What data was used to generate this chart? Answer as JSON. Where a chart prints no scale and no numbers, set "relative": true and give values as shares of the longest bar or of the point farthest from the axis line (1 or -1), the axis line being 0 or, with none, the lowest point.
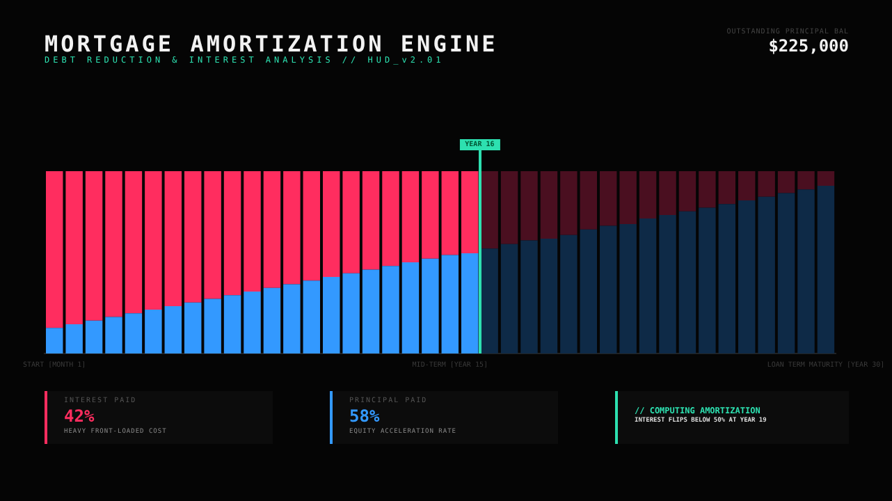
{
  "chart_data": {
    "type": "bar",
    "title": "MORTGAGE AMORTIZATION ENGINE",
    "subtitle": "DEBT REDUCTION & INTEREST ANALYSIS // HUD_v2.01",
    "categories": [
      "START [MONTH 1]",
      null,
      null,
      null,
      null,
      null,
      null,
      null,
      null,
      null,
      null,
      null,
      null,
      null,
      null,
      null,
      null,
      null,
      null,
      null,
      "MID-TERM [YEAR 15]",
      null,
      null,
      null,
      null,
      null,
      null,
      null,
      null,
      null,
      null,
      null,
      null,
      null,
      null,
      null,
      null,
      null,
      null,
      "LOAN TERM MATURITY [YEAR 30]"
    ],
    "stacked": true,
    "relative": true,
    "series": [
      {
        "values": [
          0.14,
          0.16,
          0.18,
          0.2,
          0.22,
          0.24,
          0.26,
          0.28,
          0.3,
          0.32,
          0.34,
          0.36,
          0.38,
          0.4,
          0.42,
          0.44,
          0.46,
          0.48,
          0.5,
          0.52,
          0.54,
          0.55,
          0.575,
          0.6,
          0.62,
          0.63,
          0.65,
          0.68,
          0.7,
          0.71,
          0.74,
          0.76,
          0.78,
          0.8,
          0.82,
          0.84,
          0.86,
          0.88,
          0.9,
          0.92
        ],
        "colors": [
          "#3399ff",
          "#3399ff",
          "#3399ff",
          "#3399ff",
          "#3399ff",
          "#3399ff",
          "#3399ff",
          "#3399ff",
          "#3399ff",
          "#3399ff",
          "#3399ff",
          "#3399ff",
          "#3399ff",
          "#3399ff",
          "#3399ff",
          "#3399ff",
          "#3399ff",
          "#3399ff",
          "#3399ff",
          "#3399ff",
          "#3399ff",
          "#3399ff",
          "#0e2a47",
          "#0e2a47",
          "#0e2a47",
          "#0e2a47",
          "#0e2a47",
          "#0e2a47",
          "#0e2a47",
          "#0e2a47",
          "#0e2a47",
          "#0e2a47",
          "#0e2a47",
          "#0e2a47",
          "#0e2a47",
          "#0e2a47",
          "#0e2a47",
          "#0e2a47",
          "#0e2a47",
          "#0e2a47"
        ]
      },
      {
        "values": [
          0.86,
          0.84,
          0.82,
          0.8,
          0.78,
          0.76,
          0.74,
          0.72,
          0.7,
          0.68,
          0.66,
          0.64,
          0.62,
          0.6,
          0.58,
          0.56,
          0.54,
          0.52,
          0.5,
          0.48,
          0.46,
          0.45,
          0.425,
          0.4,
          0.38,
          0.37,
          0.35,
          0.32,
          0.3,
          0.29,
          0.26,
          0.24,
          0.22,
          0.2,
          0.18,
          0.16,
          0.14,
          0.12,
          0.1,
          0.08
        ],
        "colors": [
          "#ff2d5f",
          "#ff2d5f",
          "#ff2d5f",
          "#ff2d5f",
          "#ff2d5f",
          "#ff2d5f",
          "#ff2d5f",
          "#ff2d5f",
          "#ff2d5f",
          "#ff2d5f",
          "#ff2d5f",
          "#ff2d5f",
          "#ff2d5f",
          "#ff2d5f",
          "#ff2d5f",
          "#ff2d5f",
          "#ff2d5f",
          "#ff2d5f",
          "#ff2d5f",
          "#ff2d5f",
          "#ff2d5f",
          "#ff2d5f",
          "#4a0f20",
          "#4a0f20",
          "#4a0f20",
          "#4a0f20",
          "#4a0f20",
          "#4a0f20",
          "#4a0f20",
          "#4a0f20",
          "#4a0f20",
          "#4a0f20",
          "#4a0f20",
          "#4a0f20",
          "#4a0f20",
          "#4a0f20",
          "#4a0f20",
          "#4a0f20",
          "#4a0f20",
          "#4a0f20"
        ]
      }
    ],
    "annotations": [
      "OUTSTANDING PRINCIPAL BAL",
      "$225,000",
      "YEAR 16",
      "INTEREST PAID",
      "42%",
      "HEAVY FRONT-LOADED COST",
      "PRINCIPAL PAID",
      "58%",
      "EQUITY ACCELERATION RATE",
      "// COMPUTING AMORTIZATION",
      "INTEREST FLIPS BELOW 50% AT YEAR 19"
    ]
  }
}
